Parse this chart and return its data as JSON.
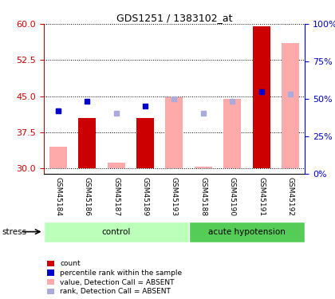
{
  "title": "GDS1251 / 1383102_at",
  "samples": [
    "GSM45184",
    "GSM45186",
    "GSM45187",
    "GSM45189",
    "GSM45193",
    "GSM45188",
    "GSM45190",
    "GSM45191",
    "GSM45192"
  ],
  "value_bars": [
    34.5,
    40.5,
    31.2,
    40.5,
    44.8,
    30.4,
    44.5,
    59.5,
    56.0
  ],
  "rank_present": [
    42.0,
    44.0,
    null,
    43.0,
    null,
    null,
    null,
    46.0,
    null
  ],
  "rank_absent": [
    42.0,
    null,
    41.5,
    null,
    44.5,
    41.5,
    44.0,
    null,
    45.5
  ],
  "is_absent": [
    true,
    false,
    true,
    false,
    true,
    true,
    true,
    false,
    true
  ],
  "ylim_left": [
    29,
    60
  ],
  "yticks_left": [
    30,
    37.5,
    45,
    52.5,
    60
  ],
  "ylim_right": [
    0,
    100
  ],
  "yticks_right": [
    0,
    25,
    50,
    75,
    100
  ],
  "color_bar_present": "#cc0000",
  "color_bar_absent": "#ffaaaa",
  "color_rank_present": "#0000cc",
  "color_rank_absent": "#aaaadd",
  "left_axis_color": "#cc0000",
  "right_axis_color": "#0000cc",
  "bar_width": 0.6,
  "bar_bottom": 30,
  "group_control_color": "#bbffbb",
  "group_hypotension_color": "#55cc55",
  "legend_items": [
    {
      "color": "#cc0000",
      "label": "count"
    },
    {
      "color": "#0000cc",
      "label": "percentile rank within the sample"
    },
    {
      "color": "#ffaaaa",
      "label": "value, Detection Call = ABSENT"
    },
    {
      "color": "#aaaadd",
      "label": "rank, Detection Call = ABSENT"
    }
  ],
  "n_control": 5,
  "n_hypotension": 4
}
